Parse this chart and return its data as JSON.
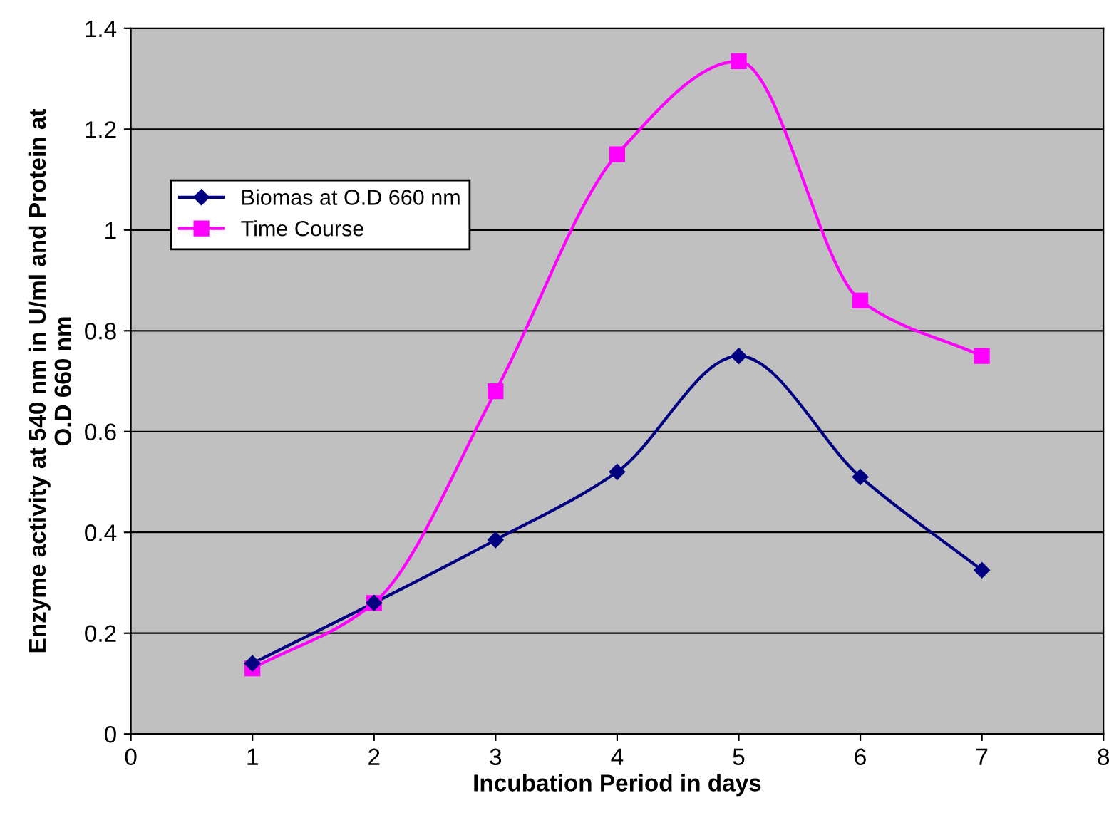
{
  "chart_data": {
    "type": "line",
    "xlabel": "Incubation Period in days",
    "ylabel": "Enzyme activity at 540 nm in U/ml and Protein at\nO.D 660 nm",
    "x": [
      1,
      2,
      3,
      4,
      5,
      6,
      7
    ],
    "series": [
      {
        "name": "Biomas at O.D 660 nm",
        "color": "#000080",
        "marker": "diamond",
        "values": [
          0.14,
          0.26,
          0.385,
          0.52,
          0.75,
          0.51,
          0.325
        ]
      },
      {
        "name": "Time Course",
        "color": "#ff00ff",
        "marker": "square",
        "values": [
          0.13,
          0.26,
          0.68,
          1.15,
          1.335,
          0.86,
          0.75
        ]
      }
    ],
    "xlim": [
      0,
      8
    ],
    "xticks": [
      0,
      1,
      2,
      3,
      4,
      5,
      6,
      7,
      8
    ],
    "ylim": [
      0,
      1.4
    ],
    "yticks": [
      0,
      0.2,
      0.4,
      0.6,
      0.8,
      1,
      1.2,
      1.4
    ],
    "grid": "y",
    "legend": "top left",
    "line_style": "solid"
  }
}
